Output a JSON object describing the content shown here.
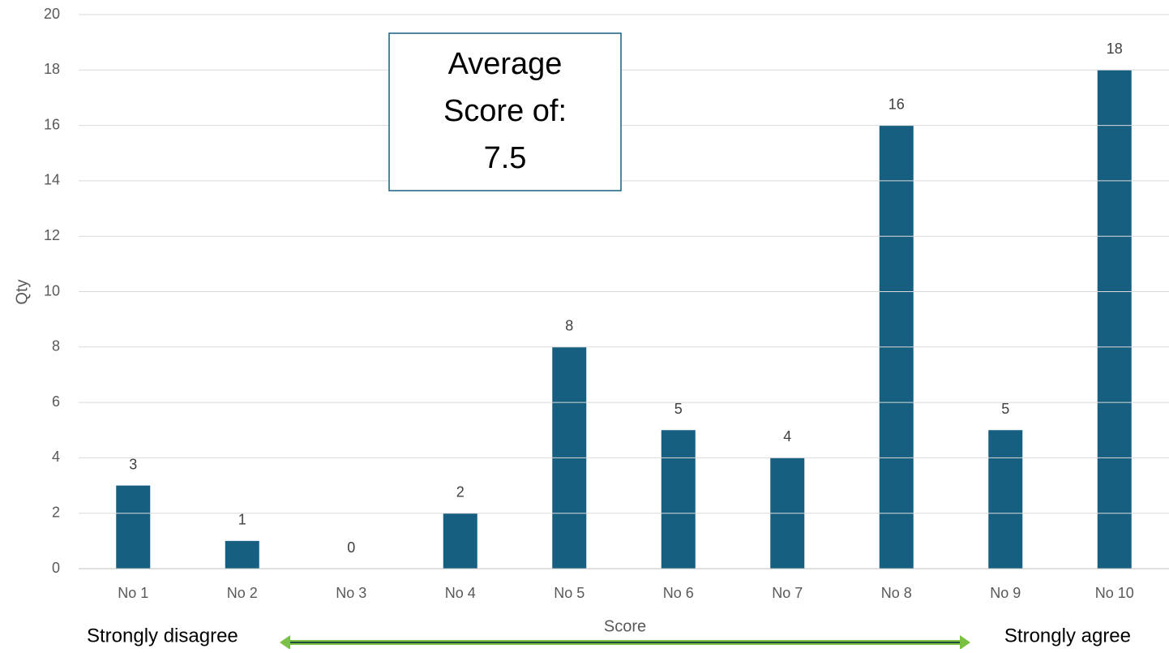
{
  "chart_data": {
    "type": "bar",
    "title": null,
    "x_label": "Score",
    "y_label": "Qty",
    "categories": [
      "No 1",
      "No 2",
      "No 3",
      "No 4",
      "No 5",
      "No 6",
      "No 7",
      "No 8",
      "No 9",
      "No 10"
    ],
    "values": [
      3,
      1,
      0,
      2,
      8,
      5,
      4,
      16,
      5,
      18
    ],
    "color": "#175f80",
    "ylim": [
      0,
      20
    ],
    "yticks": [
      0,
      2,
      4,
      6,
      8,
      10,
      12,
      14,
      16,
      18,
      20
    ],
    "grid": true,
    "annotation": [
      "Average",
      "Score of:",
      "7.5"
    ],
    "scale_left": "Strongly disagree",
    "scale_right": "Strongly agree"
  }
}
